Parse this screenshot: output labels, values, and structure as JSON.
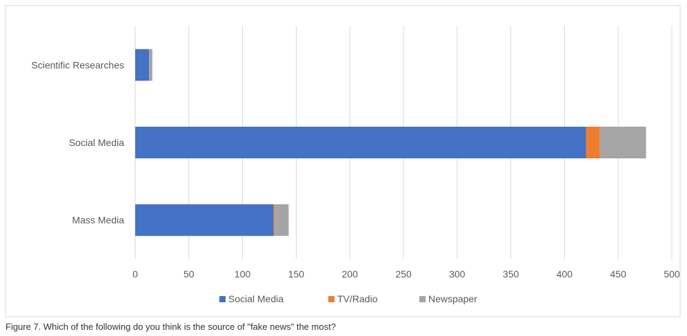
{
  "chart_data": {
    "type": "bar",
    "orientation": "horizontal",
    "stacked": true,
    "categories": [
      "Scientific Researches",
      "Social Media",
      "Mass Media"
    ],
    "series": [
      {
        "name": "Social  Media",
        "values": [
          13,
          420,
          129
        ],
        "color": "#4472C4"
      },
      {
        "name": "TV/Radio",
        "values": [
          0,
          13,
          1
        ],
        "color": "#ED7D31"
      },
      {
        "name": "Newspaper",
        "values": [
          3,
          43,
          13
        ],
        "color": "#A5A5A5"
      }
    ],
    "xlim": [
      0,
      500
    ],
    "xticks": [
      0,
      50,
      100,
      150,
      200,
      250,
      300,
      350,
      400,
      450,
      500
    ],
    "grid": "vertical",
    "legend_position": "bottom"
  },
  "caption": "Figure 7. Which of the following do you think is the source of \"fake news\" the most?"
}
